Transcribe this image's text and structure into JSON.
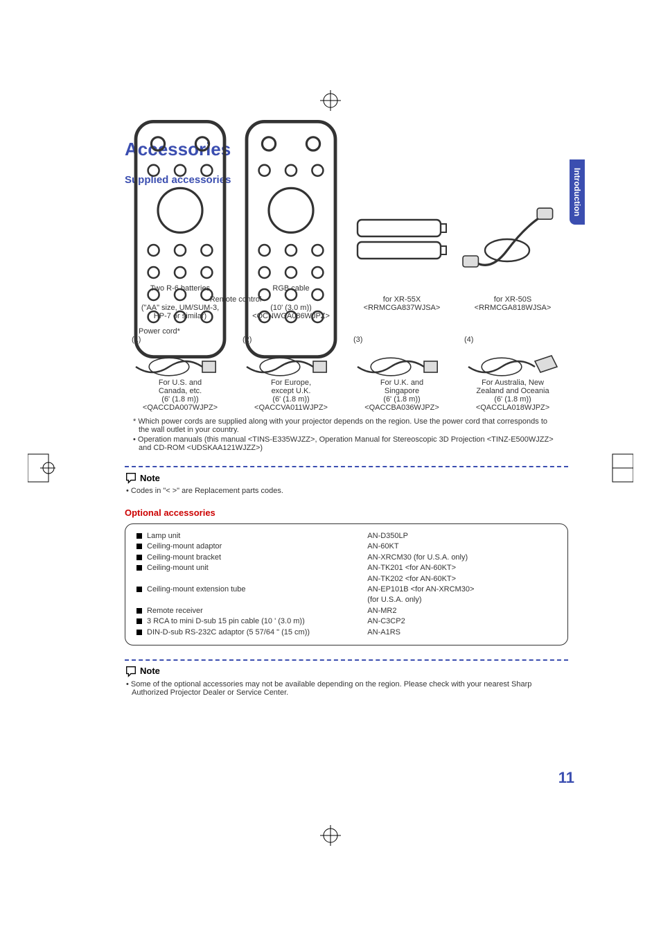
{
  "colors": {
    "accent_blue": "#3b4eb0",
    "accent_red": "#cc0000",
    "text": "#333333",
    "background": "#ffffff",
    "black": "#000000"
  },
  "typography": {
    "main_title_size": 26,
    "sub_title_size": 15,
    "body_size": 11,
    "note_header_size": 13,
    "page_number_size": 22,
    "font_family": "Arial"
  },
  "side_tab": "Introduction",
  "main_title": "Accessories",
  "supplied_title": "Supplied accessories",
  "remote_control_label": "Remote control",
  "remotes": [
    {
      "for": "for XR-55X",
      "code": "<RRMCGA837WJSA>"
    },
    {
      "for": "for XR-50S",
      "code": "<RRMCGA818WJSA>"
    }
  ],
  "batteries": {
    "line1": "Two R-6 batteries",
    "line2": "(\"AA\" size, UM/SUM-3,",
    "line3": "HP-7 or similar)"
  },
  "rgb_cable": {
    "line1": "RGB cable",
    "line2": "(10' (3.0 m))",
    "code": "<QCNWGA086WJPZ>"
  },
  "power_cord_label": "Power cord*",
  "power_cords": [
    {
      "num": "(1)",
      "region1": "For U.S. and",
      "region2": "Canada, etc.",
      "length": "(6' (1.8 m))",
      "code": "<QACCDA007WJPZ>"
    },
    {
      "num": "(2)",
      "region1": "For Europe,",
      "region2": "except U.K.",
      "length": "(6' (1.8 m))",
      "code": "<QACCVA011WJPZ>"
    },
    {
      "num": "(3)",
      "region1": "For U.K. and",
      "region2": "Singapore",
      "length": "(6' (1.8 m))",
      "code": "<QACCBA036WJPZ>"
    },
    {
      "num": "(4)",
      "region1": "For Australia, New",
      "region2": "Zealand and Oceania",
      "length": "(6' (1.8 m))",
      "code": "<QACCLA018WJPZ>"
    }
  ],
  "footnote": "* Which power cords are supplied along with your projector depends on the region. Use the power cord that corresponds to the wall outlet in your country.",
  "bullet_manual": "• Operation manuals (this manual <TINS-E335WJZZ>, Operation Manual for Stereoscopic 3D Projection <TINZ-E500WJZZ> and CD-ROM <UDSKAA121WJZZ>)",
  "note_label": "Note",
  "note1_body": "• Codes in \"<  >\" are Replacement parts codes.",
  "optional_title": "Optional accessories",
  "optional_left": [
    "Lamp unit",
    "Ceiling-mount adaptor",
    "Ceiling-mount bracket",
    "Ceiling-mount unit",
    "",
    "Ceiling-mount extension tube",
    "",
    "Remote receiver",
    "3 RCA to mini D-sub 15 pin cable (10 ' (3.0 m))",
    "DIN-D-sub RS-232C adaptor (5 57/64 \" (15 cm))"
  ],
  "optional_right": [
    "AN-D350LP",
    "AN-60KT",
    "AN-XRCM30 (for U.S.A. only)",
    "AN-TK201 <for AN-60KT>",
    "AN-TK202 <for AN-60KT>",
    "AN-EP101B <for AN-XRCM30>",
    "(for U.S.A. only)",
    "AN-MR2",
    "AN-C3CP2",
    "AN-A1RS"
  ],
  "note2_body": "• Some of the optional accessories may not be available depending on the region. Please check with your nearest Sharp Authorized Projector Dealer or Service Center.",
  "page_number": "11"
}
